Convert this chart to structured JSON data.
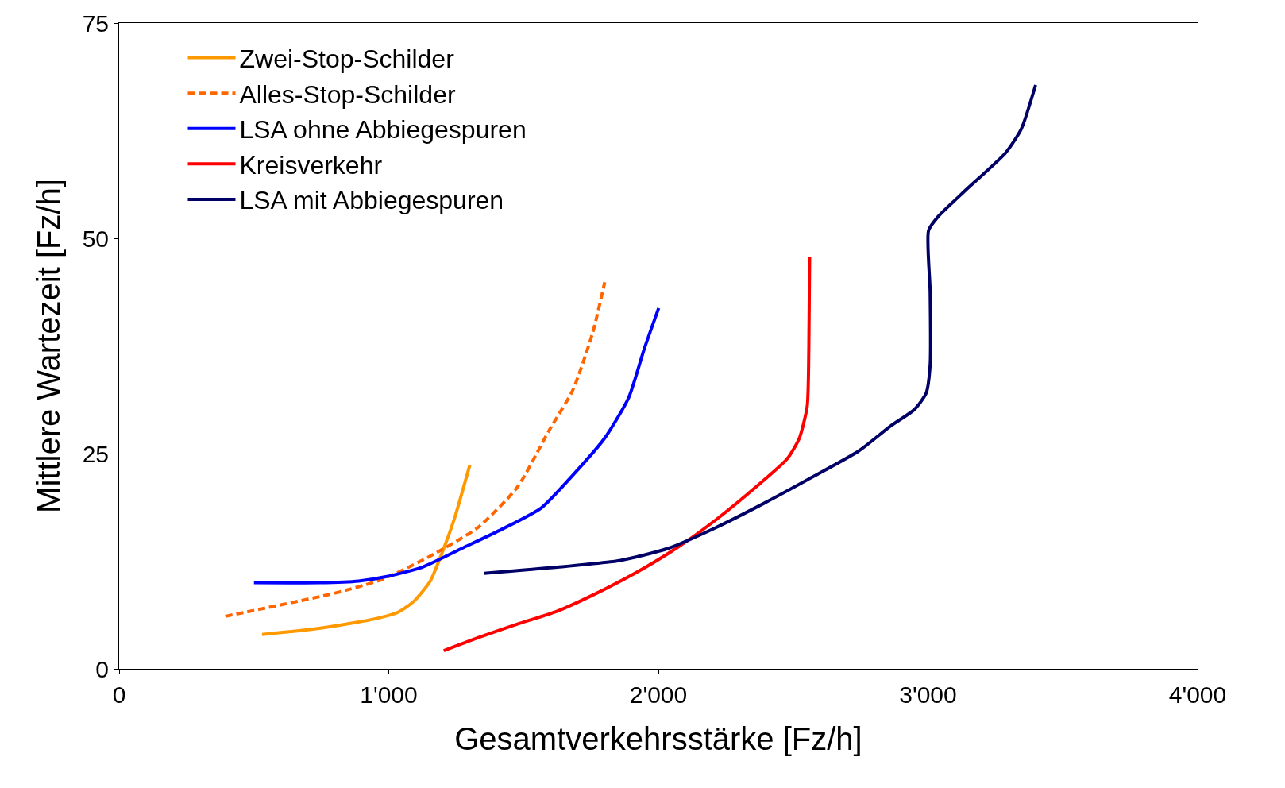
{
  "chart_data": {
    "type": "line",
    "xlabel": "Gesamtverkehrsstärke [Fz/h]",
    "ylabel": "Mittlere Wartezeit [Fz/h]",
    "xlim": [
      0,
      4000
    ],
    "xticks": [
      0,
      {
        "value": 1000,
        "label": "1'000"
      },
      {
        "value": 2000,
        "label": "2'000"
      },
      {
        "value": 3000,
        "label": "3'000"
      },
      {
        "value": 4000,
        "label": "4'000"
      }
    ],
    "ylim": [
      0,
      75
    ],
    "yticks": [
      0,
      25,
      50,
      75
    ],
    "legend": "top left",
    "marker": "none",
    "series": [
      {
        "name": "Zwei-Stop-Schilder",
        "color": "#ff9900",
        "line_style": "solid",
        "x": [
          530,
          742,
          948,
          1036,
          1095,
          1154,
          1198,
          1242,
          1301
        ],
        "values": [
          4.0,
          4.7,
          5.8,
          6.6,
          7.9,
          10.2,
          13.5,
          17.3,
          23.7
        ]
      },
      {
        "name": "Alles-Stop-Schilder",
        "color": "#ff6600",
        "line_style": "dashed",
        "x": [
          394,
          595,
          801,
          977,
          1154,
          1330,
          1477,
          1595,
          1683,
          1757,
          1801
        ],
        "values": [
          6.1,
          7.4,
          8.8,
          10.4,
          13.1,
          16.4,
          21.1,
          27.7,
          32.4,
          39.1,
          44.9
        ]
      },
      {
        "name": "LSA ohne Abbiegespuren",
        "color": "#0000ff",
        "line_style": "solid",
        "x": [
          500,
          742,
          889,
          989,
          1124,
          1272,
          1419,
          1566,
          1683,
          1801,
          1890,
          1948,
          2001
        ],
        "values": [
          10.0,
          10.0,
          10.2,
          10.7,
          11.8,
          14.0,
          16.2,
          18.7,
          22.5,
          26.8,
          31.5,
          37.2,
          41.9
        ]
      },
      {
        "name": "Kreisverkehr",
        "color": "#ff0000",
        "line_style": "solid",
        "x": [
          1204,
          1330,
          1477,
          1625,
          1772,
          1919,
          2066,
          2213,
          2361,
          2478,
          2523,
          2552,
          2558,
          2561
        ],
        "values": [
          2.1,
          3.6,
          5.2,
          6.7,
          8.8,
          11.2,
          14.0,
          17.3,
          21.1,
          24.4,
          26.8,
          30.5,
          37.2,
          47.8
        ]
      },
      {
        "name": "LSA mit Abbiegespuren",
        "color": "#000066",
        "line_style": "solid",
        "x": [
          1354,
          1625,
          1860,
          2037,
          2213,
          2390,
          2567,
          2743,
          2861,
          2949,
          2993,
          3008,
          3008,
          3002,
          3037,
          3140,
          3287,
          3346,
          3399
        ],
        "values": [
          11.1,
          11.8,
          12.6,
          14.0,
          16.4,
          19.2,
          22.2,
          25.3,
          28.2,
          30.1,
          32.0,
          35.3,
          43.8,
          50.9,
          52.5,
          55.6,
          59.9,
          62.7,
          67.8
        ]
      }
    ]
  }
}
